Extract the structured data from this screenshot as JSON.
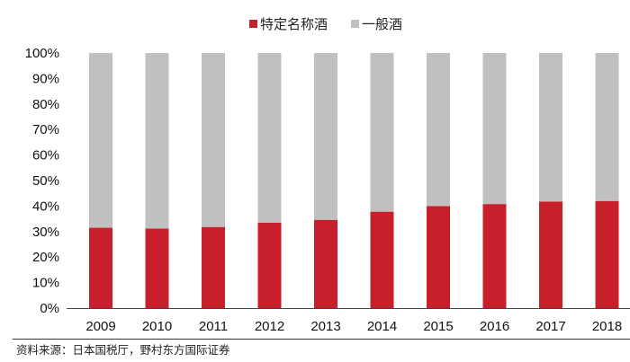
{
  "chart_data": {
    "type": "bar",
    "stacked": true,
    "normalized": true,
    "categories": [
      "2009",
      "2010",
      "2011",
      "2012",
      "2013",
      "2014",
      "2015",
      "2016",
      "2017",
      "2018"
    ],
    "series": [
      {
        "name": "特定名称酒",
        "color": "#c8202a",
        "values": [
          31.5,
          31.2,
          31.8,
          33.5,
          34.6,
          37.8,
          40.0,
          40.8,
          41.8,
          42.0
        ]
      },
      {
        "name": "一般酒",
        "color": "#c0c0c0",
        "values": [
          68.5,
          68.8,
          68.2,
          66.5,
          65.4,
          62.2,
          60.0,
          59.2,
          58.2,
          58.0
        ]
      }
    ],
    "y_ticks": [
      "0%",
      "10%",
      "20%",
      "30%",
      "40%",
      "50%",
      "60%",
      "70%",
      "80%",
      "90%",
      "100%"
    ],
    "ylim": [
      0,
      100
    ],
    "legend_position": "top-center",
    "grid": false
  },
  "source_note": "资料来源：日本国税厅，野村东方国际证券"
}
